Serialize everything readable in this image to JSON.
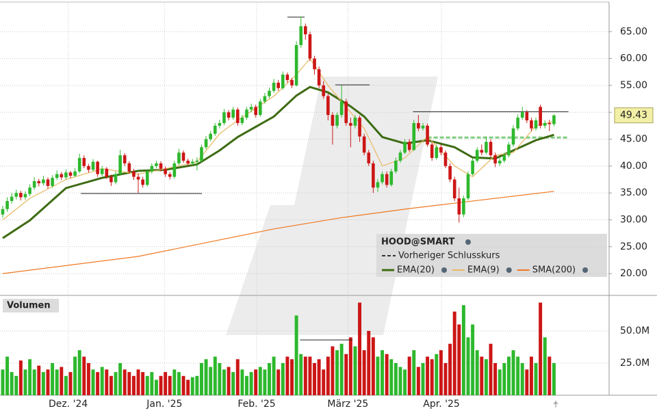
{
  "chart_data": {
    "type": "candlestick",
    "symbol": "HOOD@SMART",
    "up_color": "#2db82d",
    "down_color": "#cc1616",
    "xlim": [
      -0.6,
      134.2
    ],
    "xticks": [
      {
        "value": 14.5,
        "label": "Dez. '24"
      },
      {
        "value": 35.8,
        "label": "Jan. '25"
      },
      {
        "value": 56.2,
        "label": "Feb. '25"
      },
      {
        "value": 76.4,
        "label": "März '25"
      },
      {
        "value": 97.1,
        "label": "Apr. '25"
      }
    ],
    "ylim": [
      16.2,
      70.5
    ],
    "yticks": [
      {
        "value": 20,
        "label": "20.00"
      },
      {
        "value": 25,
        "label": "25.00"
      },
      {
        "value": 30,
        "label": "30.00"
      },
      {
        "value": 35,
        "label": "35.00"
      },
      {
        "value": 40,
        "label": "40.00"
      },
      {
        "value": 45,
        "label": "45.00"
      },
      {
        "value": 50,
        "label": "50.00"
      },
      {
        "value": 55,
        "label": "55.00"
      },
      {
        "value": 60,
        "label": "60.00"
      },
      {
        "value": 65,
        "label": "65.00"
      }
    ],
    "candles": [
      [
        31.0,
        32.6,
        30.4,
        32.0
      ],
      [
        32.0,
        34.2,
        31.5,
        33.5
      ],
      [
        33.5,
        35.0,
        33.0,
        34.3
      ],
      [
        34.3,
        35.6,
        33.8,
        35.0
      ],
      [
        35.0,
        35.4,
        33.6,
        34.2
      ],
      [
        34.2,
        35.3,
        33.7,
        34.8
      ],
      [
        34.8,
        36.6,
        34.4,
        36.0
      ],
      [
        36.0,
        37.9,
        35.6,
        37.2
      ],
      [
        37.2,
        37.6,
        36.2,
        36.8
      ],
      [
        36.8,
        38.2,
        36.4,
        37.5
      ],
      [
        37.5,
        37.9,
        35.8,
        36.3
      ],
      [
        36.3,
        38.3,
        36.0,
        37.8
      ],
      [
        37.8,
        39.2,
        37.4,
        38.5
      ],
      [
        38.5,
        38.9,
        37.4,
        37.9
      ],
      [
        37.9,
        39.4,
        37.5,
        38.8
      ],
      [
        38.8,
        39.1,
        37.7,
        38.2
      ],
      [
        38.2,
        39.6,
        37.9,
        39.0
      ],
      [
        39.0,
        42.3,
        38.7,
        41.5
      ],
      [
        41.5,
        42.0,
        39.6,
        40.0
      ],
      [
        40.0,
        40.4,
        38.8,
        39.3
      ],
      [
        39.3,
        41.3,
        39.0,
        40.8
      ],
      [
        40.8,
        41.0,
        38.0,
        38.5
      ],
      [
        38.5,
        40.0,
        38.1,
        39.5
      ],
      [
        39.5,
        39.8,
        37.6,
        38.0
      ],
      [
        38.0,
        38.4,
        36.3,
        37.0
      ],
      [
        37.0,
        39.0,
        36.6,
        38.5
      ],
      [
        38.5,
        43.0,
        38.2,
        42.0
      ],
      [
        42.0,
        42.4,
        40.0,
        40.5
      ],
      [
        40.5,
        40.9,
        38.6,
        39.0
      ],
      [
        39.0,
        39.5,
        37.4,
        38.0
      ],
      [
        38.0,
        38.6,
        35.0,
        37.5
      ],
      [
        37.5,
        38.0,
        36.0,
        36.5
      ],
      [
        36.5,
        39.4,
        36.2,
        39.0
      ],
      [
        39.0,
        40.5,
        38.6,
        40.0
      ],
      [
        40.0,
        41.0,
        39.6,
        40.5
      ],
      [
        40.5,
        40.9,
        39.0,
        39.5
      ],
      [
        39.5,
        39.9,
        38.0,
        38.5
      ],
      [
        38.5,
        38.9,
        37.5,
        38.0
      ],
      [
        38.0,
        41.0,
        37.7,
        40.5
      ],
      [
        40.5,
        43.2,
        40.2,
        42.5
      ],
      [
        42.5,
        42.9,
        40.6,
        41.0
      ],
      [
        41.0,
        41.4,
        40.0,
        40.5
      ],
      [
        40.5,
        41.3,
        40.1,
        40.8
      ],
      [
        40.8,
        41.6,
        39.2,
        41.0
      ],
      [
        41.0,
        44.0,
        40.7,
        43.5
      ],
      [
        43.5,
        45.6,
        43.1,
        45.0
      ],
      [
        45.0,
        46.5,
        44.6,
        46.0
      ],
      [
        46.0,
        48.0,
        45.6,
        47.5
      ],
      [
        47.5,
        48.6,
        47.0,
        48.0
      ],
      [
        48.0,
        50.6,
        47.6,
        50.0
      ],
      [
        50.0,
        50.4,
        48.5,
        49.0
      ],
      [
        49.0,
        51.0,
        48.6,
        50.5
      ],
      [
        50.5,
        50.9,
        47.5,
        48.0
      ],
      [
        48.0,
        49.5,
        47.6,
        49.0
      ],
      [
        49.0,
        51.0,
        48.6,
        50.5
      ],
      [
        50.5,
        51.6,
        50.0,
        51.0
      ],
      [
        51.0,
        51.4,
        49.0,
        49.5
      ],
      [
        49.5,
        52.5,
        49.2,
        52.0
      ],
      [
        52.0,
        53.6,
        51.6,
        53.0
      ],
      [
        53.0,
        54.6,
        52.6,
        54.0
      ],
      [
        54.0,
        56.2,
        53.6,
        55.5
      ],
      [
        55.5,
        56.0,
        54.0,
        54.5
      ],
      [
        54.5,
        57.6,
        54.2,
        57.0
      ],
      [
        57.0,
        57.4,
        55.5,
        56.0
      ],
      [
        56.0,
        56.4,
        54.5,
        55.0
      ],
      [
        55.0,
        63.2,
        54.8,
        62.5
      ],
      [
        62.5,
        67.8,
        62.0,
        66.0
      ],
      [
        66.0,
        66.5,
        63.5,
        64.5
      ],
      [
        64.5,
        65.0,
        59.5,
        60.0
      ],
      [
        60.0,
        60.5,
        57.0,
        58.0
      ],
      [
        58.0,
        58.5,
        54.5,
        55.0
      ],
      [
        55.0,
        55.8,
        52.5,
        53.0
      ],
      [
        53.0,
        53.5,
        48.5,
        49.5
      ],
      [
        49.5,
        50.0,
        44.0,
        47.5
      ],
      [
        47.5,
        50.0,
        47.0,
        49.5
      ],
      [
        49.5,
        55.0,
        49.0,
        52.0
      ],
      [
        52.0,
        52.5,
        47.5,
        48.0
      ],
      [
        48.0,
        49.0,
        43.5,
        47.5
      ],
      [
        47.5,
        49.5,
        47.0,
        49.0
      ],
      [
        49.0,
        49.4,
        44.5,
        45.5
      ],
      [
        45.5,
        46.0,
        42.0,
        42.5
      ],
      [
        42.5,
        43.0,
        40.0,
        40.5
      ],
      [
        40.5,
        41.0,
        35.0,
        36.0
      ],
      [
        36.0,
        37.6,
        35.2,
        37.0
      ],
      [
        37.0,
        39.0,
        36.6,
        38.5
      ],
      [
        38.5,
        39.0,
        36.0,
        36.5
      ],
      [
        36.5,
        39.5,
        36.2,
        39.0
      ],
      [
        39.0,
        41.6,
        38.6,
        41.0
      ],
      [
        41.0,
        43.0,
        40.6,
        42.5
      ],
      [
        42.5,
        45.0,
        42.2,
        44.5
      ],
      [
        44.5,
        45.0,
        42.6,
        43.0
      ],
      [
        43.0,
        48.6,
        42.8,
        48.0
      ],
      [
        48.0,
        49.5,
        46.5,
        47.0
      ],
      [
        47.0,
        48.0,
        46.6,
        47.5
      ],
      [
        47.5,
        47.9,
        43.6,
        44.0
      ],
      [
        44.0,
        44.4,
        41.0,
        41.5
      ],
      [
        41.5,
        44.0,
        41.2,
        43.5
      ],
      [
        43.5,
        44.0,
        42.0,
        42.5
      ],
      [
        42.5,
        42.9,
        39.6,
        40.0
      ],
      [
        40.0,
        40.5,
        37.0,
        37.5
      ],
      [
        37.5,
        38.0,
        33.5,
        34.0
      ],
      [
        34.0,
        36.0,
        29.5,
        31.0
      ],
      [
        31.0,
        34.5,
        30.5,
        34.0
      ],
      [
        34.0,
        39.0,
        33.6,
        38.5
      ],
      [
        38.5,
        41.6,
        38.2,
        41.0
      ],
      [
        41.0,
        43.5,
        40.6,
        43.0
      ],
      [
        43.0,
        44.0,
        42.0,
        42.5
      ],
      [
        42.5,
        45.5,
        42.2,
        44.5
      ],
      [
        44.5,
        45.0,
        41.6,
        42.0
      ],
      [
        42.0,
        42.5,
        39.8,
        40.5
      ],
      [
        40.5,
        41.5,
        40.0,
        41.0
      ],
      [
        41.0,
        42.5,
        40.6,
        42.0
      ],
      [
        42.0,
        44.5,
        41.6,
        44.0
      ],
      [
        44.0,
        47.6,
        43.6,
        47.0
      ],
      [
        47.0,
        49.6,
        46.6,
        49.0
      ],
      [
        49.0,
        51.0,
        48.6,
        50.0
      ],
      [
        50.0,
        50.4,
        48.0,
        48.5
      ],
      [
        48.5,
        49.0,
        46.5,
        47.0
      ],
      [
        47.0,
        49.0,
        46.6,
        48.5
      ],
      [
        51.0,
        51.4,
        47.0,
        47.5
      ],
      [
        47.5,
        48.5,
        47.0,
        48.0
      ],
      [
        48.0,
        48.6,
        46.5,
        47.8
      ],
      [
        47.8,
        49.6,
        47.4,
        49.43
      ]
    ],
    "last_price": 49.43,
    "overlays": [
      {
        "name": "EMA(20)",
        "color": "#3d6b12",
        "x": [
          0,
          6,
          14,
          22,
          30,
          36,
          43,
          48,
          52,
          60,
          65,
          68,
          72,
          77,
          80,
          84,
          89,
          94,
          100,
          104,
          109,
          113,
          118,
          122
        ],
        "values": [
          26.6,
          29.9,
          35.9,
          37.8,
          39.1,
          39.3,
          40.3,
          42.9,
          45.4,
          49.2,
          53.1,
          54.7,
          53.7,
          51.1,
          49.2,
          45.4,
          44.2,
          44.8,
          43.5,
          41.6,
          41.4,
          42.9,
          44.8,
          45.8
        ]
      },
      {
        "name": "EMA(9)",
        "color": "#e8b860",
        "x": [
          0,
          6,
          14,
          22,
          30,
          36,
          43,
          48,
          52,
          60,
          65,
          68,
          72,
          77,
          80,
          84,
          89,
          94,
          100,
          104,
          109,
          113,
          118,
          122
        ],
        "values": [
          30,
          34,
          37.5,
          39.5,
          38.5,
          39.5,
          40.8,
          46,
          48.5,
          53,
          57,
          60,
          55,
          50,
          47,
          40,
          41.5,
          45.5,
          40,
          38,
          42,
          42.5,
          47.5,
          48.3
        ]
      },
      {
        "name": "SMA(200)",
        "color": "#f07820",
        "x": [
          0,
          30,
          60,
          75,
          90,
          105,
          122
        ],
        "values": [
          20.0,
          23.2,
          28.3,
          30.4,
          32.1,
          33.6,
          35.3
        ]
      }
    ],
    "previous_close": {
      "name": "Vorheriger Schlusskurs",
      "value": 45.3,
      "from": 94,
      "to": 125.2,
      "color": "#7fcc7f"
    },
    "levels": [
      {
        "value": 67.7,
        "from": 63,
        "to": 66.8
      },
      {
        "value": 34.9,
        "from": 17.3,
        "to": 44.1
      },
      {
        "value": 55.1,
        "from": 73.6,
        "to": 81.2
      },
      {
        "value": 50.1,
        "from": 90.8,
        "to": 125.2
      }
    ],
    "volume": {
      "title": "Volumen",
      "ylim": [
        0,
        76
      ],
      "yticks": [
        {
          "value": 25,
          "label": "25.0M"
        },
        {
          "value": 50,
          "label": "50.0M"
        }
      ],
      "values": [
        20,
        30,
        18,
        15,
        27,
        20,
        28,
        20,
        23,
        18,
        20,
        25,
        20,
        22,
        15,
        18,
        30,
        35,
        30,
        25,
        20,
        18,
        22,
        20,
        15,
        18,
        25,
        20,
        18,
        15,
        20,
        18,
        15,
        18,
        12,
        15,
        18,
        15,
        20,
        18,
        15,
        12,
        14,
        15,
        25,
        28,
        22,
        30,
        25,
        20,
        22,
        18,
        28,
        20,
        15,
        18,
        20,
        22,
        20,
        25,
        30,
        20,
        25,
        30,
        28,
        62,
        32,
        30,
        30,
        25,
        28,
        20,
        30,
        38,
        35,
        40,
        32,
        45,
        38,
        72,
        35,
        50,
        45,
        30,
        35,
        32,
        28,
        25,
        22,
        20,
        30,
        35,
        22,
        25,
        30,
        28,
        32,
        35,
        25,
        40,
        65,
        55,
        70,
        45,
        55,
        35,
        30,
        28,
        40,
        25,
        20,
        25,
        30,
        35,
        30,
        25,
        20,
        30,
        25,
        72,
        45,
        30,
        25
      ],
      "level": {
        "value": 43,
        "from": 65.8,
        "to": 77.4
      }
    }
  }
}
